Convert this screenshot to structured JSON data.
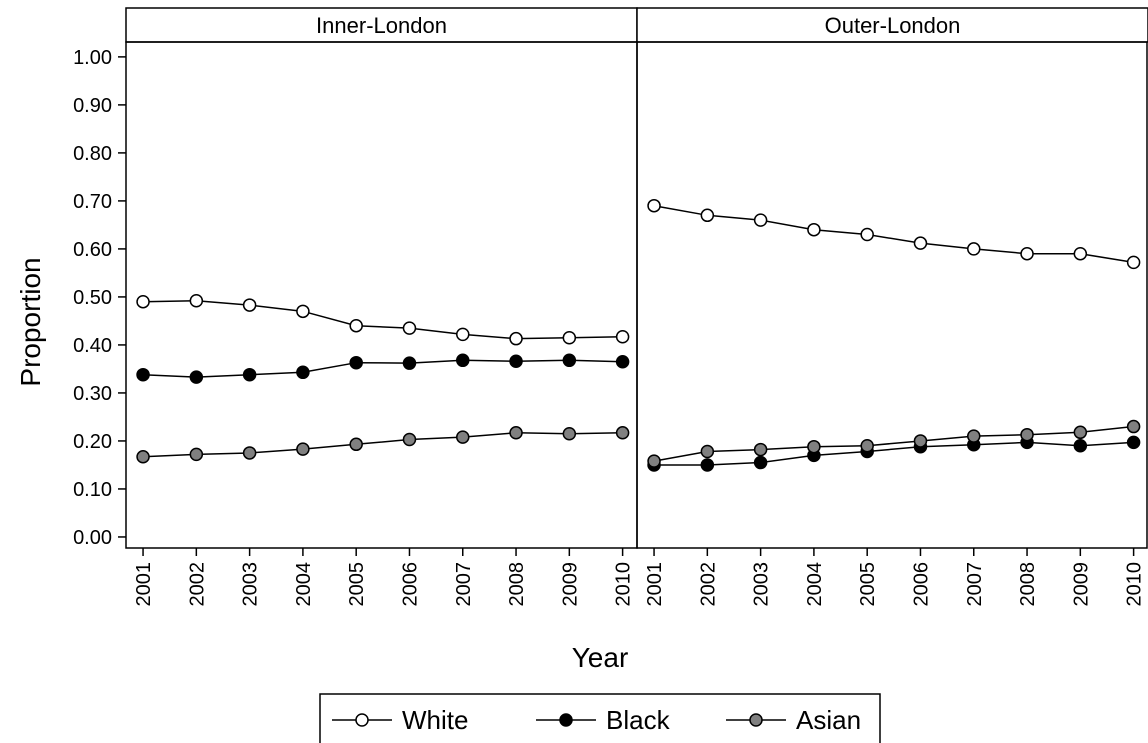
{
  "chart_data": {
    "type": "line",
    "y_label": "Proportion",
    "x_label": "Year",
    "panels": [
      "Inner-London",
      "Outer-London"
    ],
    "x": [
      2001,
      2002,
      2003,
      2004,
      2005,
      2006,
      2007,
      2008,
      2009,
      2010
    ],
    "xlim": [
      2000.68,
      2010.27
    ],
    "xticks": [
      2001,
      2002,
      2003,
      2004,
      2005,
      2006,
      2007,
      2008,
      2009,
      2010
    ],
    "ylim": [
      -0.023,
      1.031
    ],
    "yticks": [
      {
        "value": 0,
        "label": "0.00"
      },
      {
        "value": 0.1,
        "label": "0.10"
      },
      {
        "value": 0.2,
        "label": "0.20"
      },
      {
        "value": 0.3,
        "label": "0.30"
      },
      {
        "value": 0.4,
        "label": "0.40"
      },
      {
        "value": 0.5,
        "label": "0.50"
      },
      {
        "value": 0.6,
        "label": "0.60"
      },
      {
        "value": 0.7,
        "label": "0.70"
      },
      {
        "value": 0.8,
        "label": "0.80"
      },
      {
        "value": 0.9,
        "label": "0.90"
      },
      {
        "value": 1,
        "label": "1.00"
      }
    ],
    "series": [
      {
        "name": "White",
        "color": "#ffffff",
        "values": [
          [
            0.49,
            0.492,
            0.483,
            0.47,
            0.44,
            0.435,
            0.422,
            0.413,
            0.415,
            0.417
          ],
          [
            0.69,
            0.67,
            0.66,
            0.64,
            0.63,
            0.612,
            0.6,
            0.59,
            0.59,
            0.572
          ]
        ]
      },
      {
        "name": "Black",
        "color": "#000000",
        "values": [
          [
            0.338,
            0.333,
            0.338,
            0.343,
            0.363,
            0.362,
            0.368,
            0.366,
            0.368,
            0.365
          ],
          [
            0.15,
            0.15,
            0.155,
            0.17,
            0.178,
            0.188,
            0.192,
            0.197,
            0.19,
            0.197
          ]
        ]
      },
      {
        "name": "Asian",
        "color": "#808080",
        "values": [
          [
            0.167,
            0.172,
            0.175,
            0.183,
            0.193,
            0.203,
            0.208,
            0.217,
            0.215,
            0.217
          ],
          [
            0.158,
            0.178,
            0.182,
            0.188,
            0.19,
            0.2,
            0.21,
            0.213,
            0.218,
            0.23
          ]
        ]
      }
    ]
  }
}
